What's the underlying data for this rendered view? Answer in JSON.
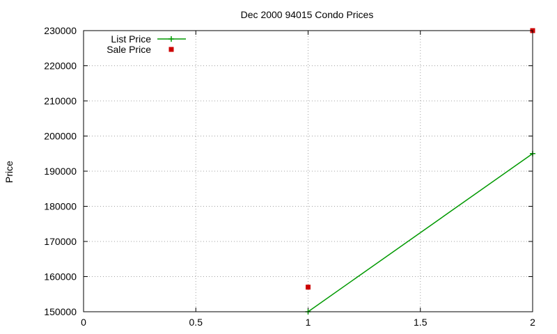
{
  "chart_data": {
    "type": "line",
    "title": "Dec 2000 94015 Condo Prices",
    "xlabel": "",
    "ylabel": "Price",
    "xlim": [
      0,
      2
    ],
    "ylim": [
      150000,
      230000
    ],
    "x_ticks": [
      "0",
      "0.5",
      "1",
      "1.5",
      "2"
    ],
    "x_tick_values": [
      0,
      0.5,
      1,
      1.5,
      2
    ],
    "y_ticks": [
      "150000",
      "160000",
      "170000",
      "180000",
      "190000",
      "200000",
      "210000",
      "220000",
      "230000"
    ],
    "y_tick_values": [
      150000,
      160000,
      170000,
      180000,
      190000,
      200000,
      210000,
      220000,
      230000
    ],
    "grid": true,
    "legend_position": "top-left",
    "series": [
      {
        "name": "List Price",
        "style": "linespoints",
        "marker": "plus",
        "color": "#009900",
        "x": [
          1,
          2
        ],
        "y": [
          150000,
          195000
        ]
      },
      {
        "name": "Sale Price",
        "style": "points",
        "marker": "square",
        "color": "#cc0000",
        "x": [
          1,
          2
        ],
        "y": [
          157000,
          230000
        ]
      }
    ]
  }
}
